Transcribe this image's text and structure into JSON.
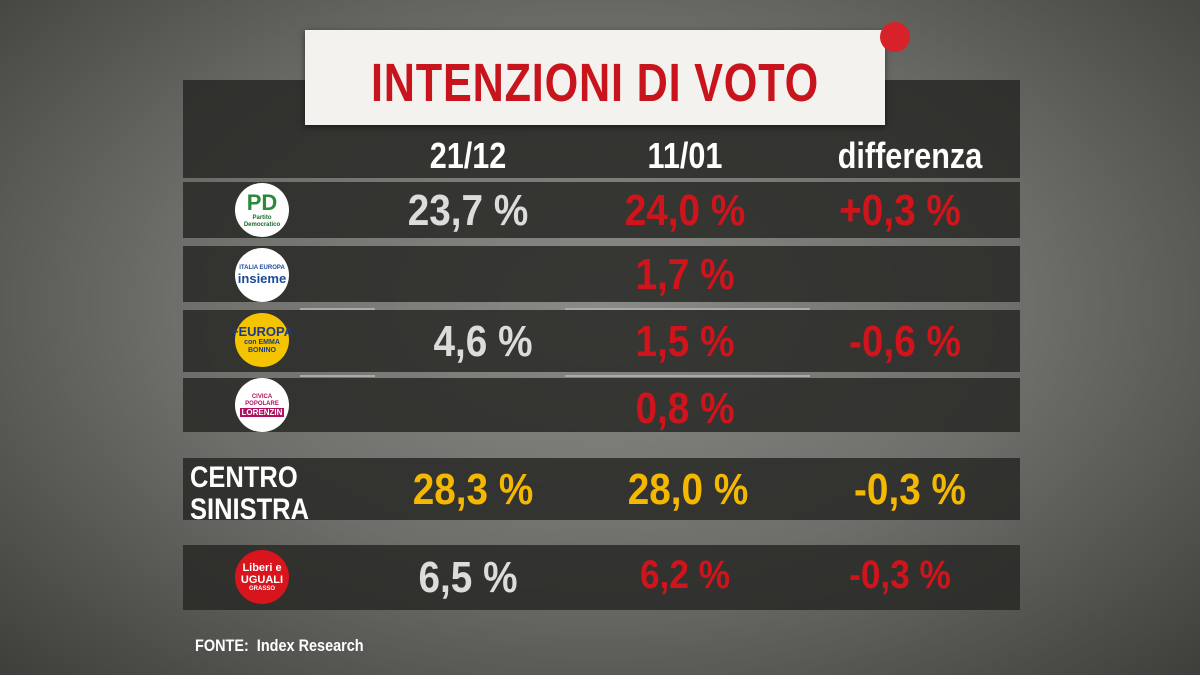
{
  "title": "INTENZIONI DI VOTO",
  "columns": [
    "21/12",
    "11/01",
    "differenza"
  ],
  "rows": [
    {
      "logo": [
        "PD",
        "Partito Democratico"
      ],
      "cells": [
        "23,7 %",
        "24,0 %",
        "+0,3 %"
      ]
    },
    {
      "logo": [
        "Liberi e UGUALI",
        "GRASSO"
      ],
      "cells": [
        "6,5 %",
        "6,2 %",
        "-0,3 %"
      ]
    }
  ],
  "group": {
    "first": "4,6 %",
    "diff": "-0,6 %",
    "parties": [
      {
        "logo": [
          "ITALIA EUROPA",
          "insieme"
        ],
        "value": "1,7 %"
      },
      {
        "logo": [
          "+EUROPA",
          "con EMMA BONINO"
        ],
        "value": "1,5 %"
      },
      {
        "logo": [
          "CIVICA POPOLARE",
          "LORENZIN"
        ],
        "value": "0,8 %"
      }
    ]
  },
  "coalition": {
    "label": [
      "CENTRO",
      "SINISTRA"
    ],
    "cells": [
      "28,3 %",
      "28,0 %",
      "-0,3 %"
    ]
  },
  "source": "FONTE:  Index Research"
}
